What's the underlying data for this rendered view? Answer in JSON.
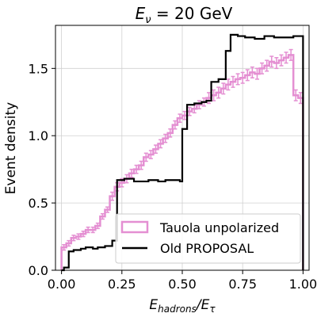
{
  "chart_data": {
    "type": "line",
    "title": "E_ν = 20 GeV",
    "title_main": "E",
    "title_sub": "ν",
    "title_rest": " = 20 GeV",
    "xlabel": "E_hadrons/E_τ",
    "xlabel_main": "E",
    "xlabel_sub1": "hadrons",
    "xlabel_mid": "/E",
    "xlabel_sub2": "τ",
    "ylabel": "Event density",
    "xlim": [
      -0.025,
      1.025
    ],
    "ylim": [
      0,
      1.82
    ],
    "grid": true,
    "legend_placement": "lower-right",
    "x_ticks": [
      {
        "value": 0.0,
        "label": "0.00"
      },
      {
        "value": 0.25,
        "label": "0.25"
      },
      {
        "value": 0.5,
        "label": "0.50"
      },
      {
        "value": 0.75,
        "label": "0.75"
      },
      {
        "value": 1.0,
        "label": "1.00"
      }
    ],
    "y_ticks": [
      {
        "value": 0.0,
        "label": "0.0"
      },
      {
        "value": 0.5,
        "label": "0.5"
      },
      {
        "value": 1.0,
        "label": "1.0"
      },
      {
        "value": 1.5,
        "label": "1.5"
      }
    ],
    "series": [
      {
        "name": "Tauola unpolarized",
        "color": "#e48fd2",
        "style": "step-with-errorbars",
        "bin_edges": [
          0.0,
          0.02,
          0.04,
          0.06,
          0.08,
          0.1,
          0.12,
          0.14,
          0.16,
          0.18,
          0.2,
          0.22,
          0.24,
          0.26,
          0.28,
          0.3,
          0.32,
          0.34,
          0.36,
          0.38,
          0.4,
          0.42,
          0.44,
          0.46,
          0.48,
          0.5,
          0.52,
          0.54,
          0.56,
          0.58,
          0.6,
          0.62,
          0.64,
          0.66,
          0.68,
          0.7,
          0.72,
          0.74,
          0.76,
          0.78,
          0.8,
          0.82,
          0.84,
          0.86,
          0.88,
          0.9,
          0.92,
          0.94,
          0.96,
          0.98,
          1.0
        ],
        "values": [
          0.17,
          0.2,
          0.24,
          0.25,
          0.27,
          0.3,
          0.3,
          0.33,
          0.4,
          0.45,
          0.55,
          0.62,
          0.65,
          0.68,
          0.72,
          0.75,
          0.78,
          0.84,
          0.86,
          0.9,
          0.94,
          0.98,
          1.02,
          1.08,
          1.13,
          1.15,
          1.18,
          1.2,
          1.23,
          1.25,
          1.28,
          1.3,
          1.32,
          1.35,
          1.38,
          1.4,
          1.42,
          1.43,
          1.45,
          1.47,
          1.46,
          1.5,
          1.52,
          1.55,
          1.54,
          1.56,
          1.58,
          1.6,
          1.3,
          1.28
        ],
        "errors": [
          0.02,
          0.02,
          0.02,
          0.02,
          0.02,
          0.02,
          0.02,
          0.02,
          0.02,
          0.02,
          0.03,
          0.03,
          0.03,
          0.03,
          0.03,
          0.03,
          0.03,
          0.03,
          0.03,
          0.03,
          0.03,
          0.03,
          0.03,
          0.03,
          0.03,
          0.03,
          0.03,
          0.03,
          0.03,
          0.03,
          0.04,
          0.04,
          0.04,
          0.04,
          0.04,
          0.04,
          0.04,
          0.04,
          0.04,
          0.04,
          0.04,
          0.04,
          0.04,
          0.04,
          0.04,
          0.04,
          0.04,
          0.04,
          0.04,
          0.04
        ]
      },
      {
        "name": "Old PROPOSAL",
        "color": "#000000",
        "style": "step",
        "bin_edges": [
          0.0,
          0.01,
          0.03,
          0.05,
          0.08,
          0.1,
          0.13,
          0.15,
          0.18,
          0.21,
          0.23,
          0.26,
          0.3,
          0.33,
          0.36,
          0.4,
          0.43,
          0.46,
          0.49,
          0.5,
          0.52,
          0.55,
          0.58,
          0.6,
          0.62,
          0.65,
          0.68,
          0.7,
          0.73,
          0.76,
          0.8,
          0.84,
          0.88,
          0.92,
          0.96,
          0.99,
          1.0
        ],
        "values": [
          0.0,
          0.02,
          0.14,
          0.15,
          0.16,
          0.17,
          0.16,
          0.17,
          0.18,
          0.22,
          0.67,
          0.68,
          0.66,
          0.66,
          0.67,
          0.66,
          0.67,
          0.67,
          0.66,
          1.05,
          1.23,
          1.24,
          1.25,
          1.26,
          1.4,
          1.42,
          1.63,
          1.75,
          1.74,
          1.73,
          1.72,
          1.74,
          1.73,
          1.73,
          1.74,
          1.74
        ]
      }
    ]
  }
}
